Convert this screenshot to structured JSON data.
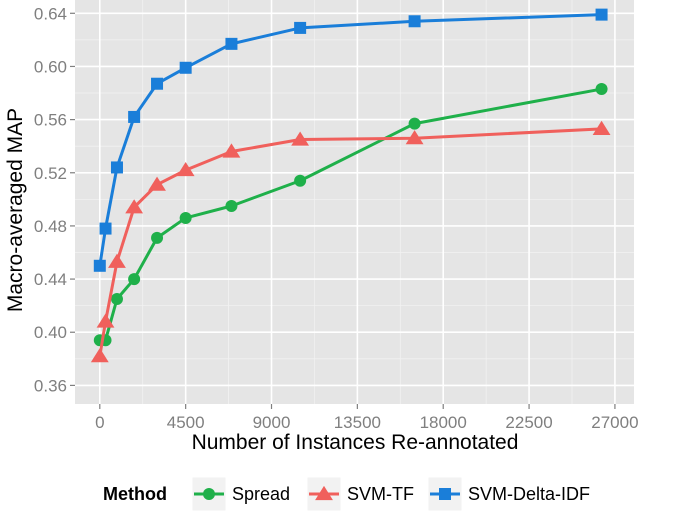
{
  "chart_data": {
    "type": "line",
    "xlabel": "Number of Instances Re-annotated",
    "ylabel": "Macro-averaged MAP",
    "xlim": [
      -1300,
      28000
    ],
    "ylim": [
      0.346,
      0.65
    ],
    "x_ticks": [
      0,
      4500,
      9000,
      13500,
      18000,
      22500,
      27000
    ],
    "x_tick_labels": [
      "0",
      "4500",
      "9000",
      "13500",
      "18000",
      "22500",
      "27000"
    ],
    "y_ticks": [
      0.36,
      0.4,
      0.44,
      0.48,
      0.52,
      0.56,
      0.6,
      0.64
    ],
    "y_tick_labels": [
      "0.36",
      "0.40",
      "0.44",
      "0.48",
      "0.52",
      "0.56",
      "0.60",
      "0.64"
    ],
    "grid": true,
    "legend": {
      "title": "Method",
      "position": "bottom"
    },
    "series": [
      {
        "name": "Spread",
        "color": "#1fb04a",
        "marker": "circle",
        "x": [
          0,
          300,
          900,
          1800,
          3000,
          4500,
          6900,
          10500,
          16500,
          26300
        ],
        "y": [
          0.394,
          0.394,
          0.425,
          0.44,
          0.471,
          0.486,
          0.495,
          0.514,
          0.557,
          0.583
        ]
      },
      {
        "name": "SVM-TF",
        "color": "#f0605c",
        "marker": "triangle",
        "x": [
          0,
          300,
          900,
          1800,
          3000,
          4500,
          6900,
          10500,
          16500,
          26300
        ],
        "y": [
          0.382,
          0.408,
          0.453,
          0.494,
          0.511,
          0.522,
          0.536,
          0.545,
          0.546,
          0.553
        ]
      },
      {
        "name": "SVM-Delta-IDF",
        "color": "#1a7ed9",
        "marker": "square",
        "x": [
          0,
          300,
          900,
          1800,
          3000,
          4500,
          6900,
          10500,
          16500,
          26300
        ],
        "y": [
          0.45,
          0.478,
          0.524,
          0.562,
          0.587,
          0.599,
          0.617,
          0.629,
          0.634,
          0.639
        ]
      }
    ]
  }
}
